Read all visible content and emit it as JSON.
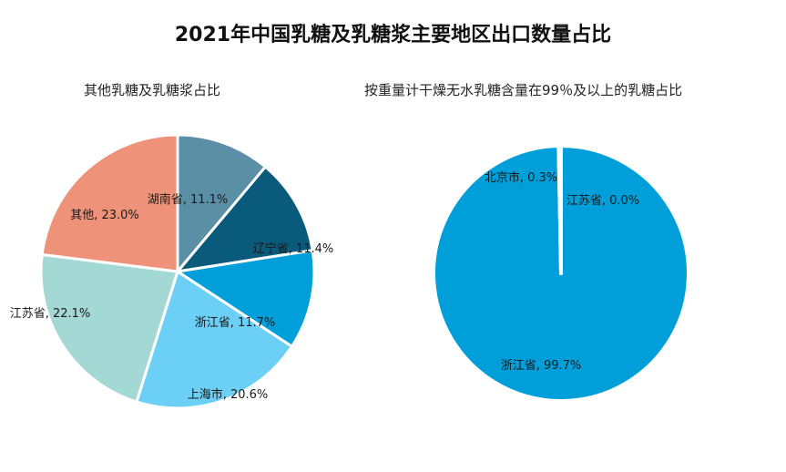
{
  "title": "2021年中国乳糖及乳糖浆主要地区出口数量占比",
  "chart_data": [
    {
      "type": "pie",
      "title": "其他乳糖及乳糖浆占比",
      "slices": [
        {
          "label": "湖南省",
          "value": 11.1,
          "display": "湖南省, 11.1%",
          "color": "#5b8fa6"
        },
        {
          "label": "辽宁省",
          "value": 11.4,
          "display": "辽宁省, 11.4%",
          "color": "#0a5a7c"
        },
        {
          "label": "浙江省",
          "value": 11.7,
          "display": "浙江省, 11.7%",
          "color": "#019fd9"
        },
        {
          "label": "上海市",
          "value": 20.6,
          "display": "上海市, 20.6%",
          "color": "#6ccff6"
        },
        {
          "label": "江苏省",
          "value": 22.1,
          "display": "江苏省, 22.1%",
          "color": "#a3d8d4"
        },
        {
          "label": "其他",
          "value": 23.0,
          "display": "其他, 23.0%",
          "color": "#ee9279"
        }
      ]
    },
    {
      "type": "pie",
      "title": "按重量计干燥无水乳糖含量在99％及以上的乳糖占比",
      "slices": [
        {
          "label": "江苏省",
          "value": 0.0,
          "display": "江苏省, 0.0%",
          "color": "#0a5a7c"
        },
        {
          "label": "浙江省",
          "value": 99.7,
          "display": "浙江省, 99.7%",
          "color": "#019fd9"
        },
        {
          "label": "北京市",
          "value": 0.3,
          "display": "北京市, 0.3%",
          "color": "#6ccff6"
        }
      ]
    }
  ]
}
